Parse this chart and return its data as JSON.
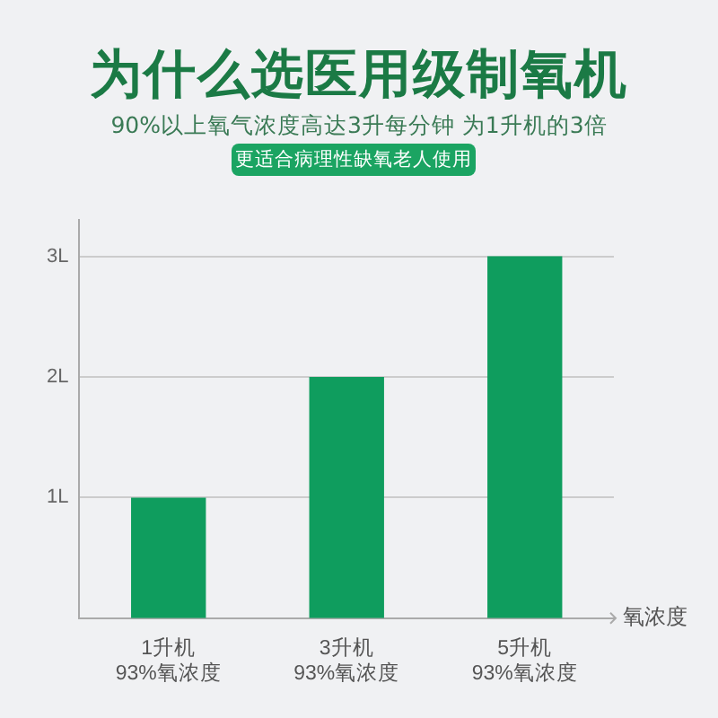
{
  "chart_data": {
    "type": "bar",
    "title": "为什么选医用级制氧机",
    "subtitle": "90%以上氧气浓度高达3升每分钟 为1升机的3倍",
    "annotations": [
      "更适合病理性缺氧老人使用"
    ],
    "categories": [
      "1升机\n93%氧浓度",
      "3升机\n93%氧浓度",
      "5升机\n93%氧浓度"
    ],
    "values": [
      1,
      2,
      3
    ],
    "color": "#0f9d5e",
    "xlabel": "氧浓度",
    "ylim": [
      0,
      3.3
    ],
    "yticks": [
      {
        "value": 1,
        "label": "1L"
      },
      {
        "value": 2,
        "label": "2L"
      },
      {
        "value": 3,
        "label": "3L"
      }
    ],
    "grid": "y",
    "legend": false
  }
}
